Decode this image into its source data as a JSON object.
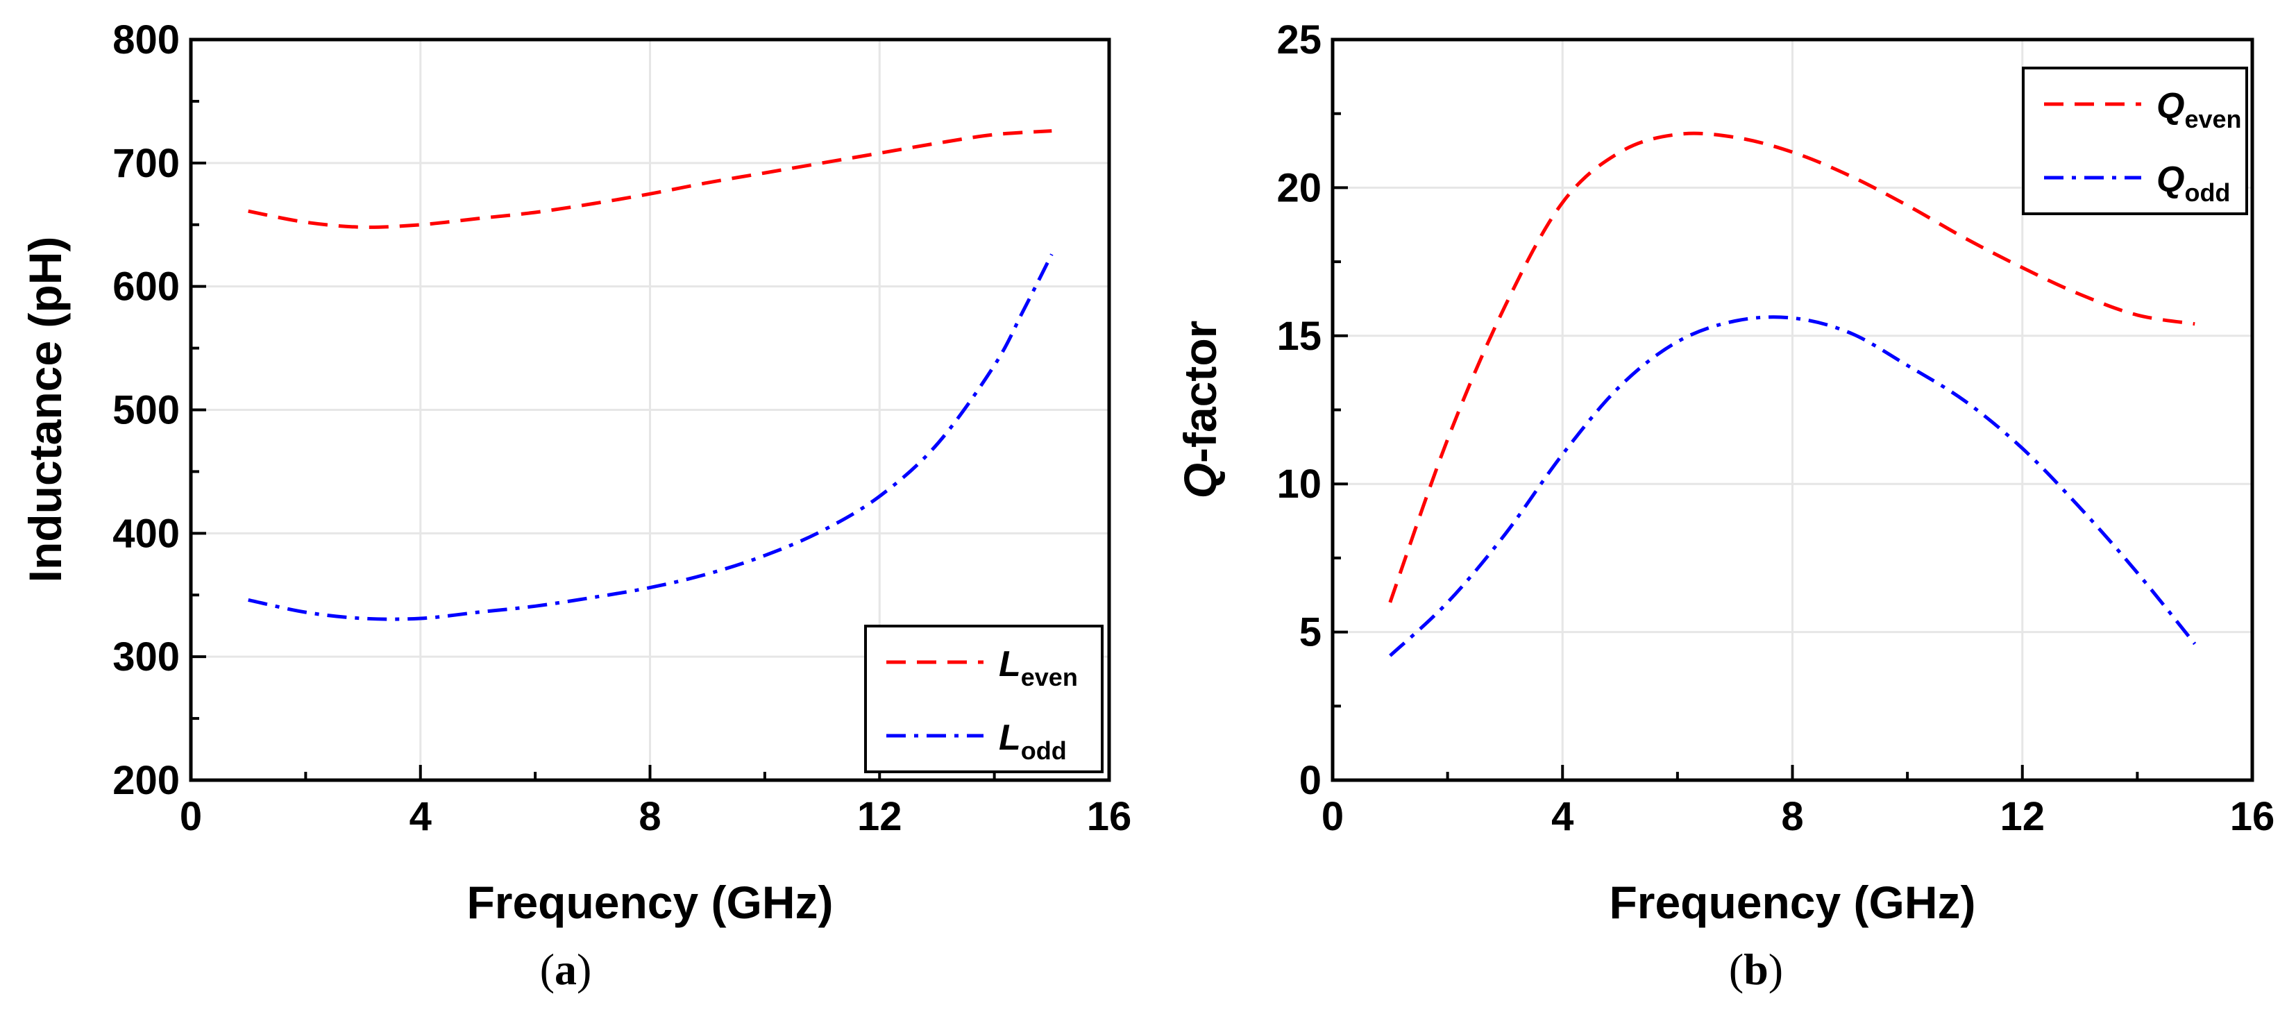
{
  "chart_data": [
    {
      "type": "line",
      "panel_label": {
        "open": "(",
        "letter": "a",
        "close": ")"
      },
      "xlabel": "Frequency (GHz)",
      "ylabel": "Inductance (pH)",
      "xlim": [
        0,
        16
      ],
      "ylim": [
        200,
        800
      ],
      "xticks": [
        0,
        4,
        8,
        12,
        16
      ],
      "xtick_labels": [
        "0",
        "4",
        "8",
        "12",
        "16"
      ],
      "yticks": [
        200,
        300,
        400,
        500,
        600,
        700,
        800
      ],
      "ytick_labels": [
        "200",
        "300",
        "400",
        "500",
        "600",
        "700",
        "800"
      ],
      "grid": true,
      "legend_position": "bottom-right",
      "series": [
        {
          "name": "L_even",
          "legend_main": "L",
          "legend_sub": "even",
          "color": "#ff0000",
          "style": "dash",
          "x": [
            1,
            2,
            3,
            4,
            5,
            6,
            7,
            8,
            9,
            10,
            11,
            12,
            13,
            14,
            15
          ],
          "y": [
            661,
            652,
            648,
            650,
            655,
            660,
            667,
            675,
            684,
            692,
            700,
            708,
            716,
            723,
            726
          ]
        },
        {
          "name": "L_odd",
          "legend_main": "L",
          "legend_sub": "odd",
          "color": "#0000ff",
          "style": "dashdot",
          "x": [
            1,
            2,
            3,
            4,
            5,
            6,
            7,
            8,
            9,
            10,
            11,
            12,
            13,
            14,
            14.5,
            15
          ],
          "y": [
            346,
            336,
            331,
            331,
            336,
            341,
            348,
            356,
            367,
            382,
            402,
            430,
            472,
            536,
            580,
            626
          ]
        }
      ]
    },
    {
      "type": "line",
      "panel_label": {
        "open": "(",
        "letter": "b",
        "close": ")"
      },
      "xlabel": "Frequency (GHz)",
      "ylabel_main": "Q",
      "ylabel_rest": "-factor",
      "xlim": [
        0,
        16
      ],
      "ylim": [
        0,
        25
      ],
      "xticks": [
        0,
        4,
        8,
        12,
        16
      ],
      "xtick_labels": [
        "0",
        "4",
        "8",
        "12",
        "16"
      ],
      "yticks": [
        0,
        5,
        10,
        15,
        20,
        25
      ],
      "ytick_labels": [
        "0",
        "5",
        "10",
        "15",
        "20",
        "25"
      ],
      "grid": true,
      "legend_position": "top-right",
      "series": [
        {
          "name": "Q_even",
          "legend_main": "Q",
          "legend_sub": "even",
          "color": "#ff0000",
          "style": "dash",
          "x": [
            1,
            2,
            3,
            4,
            5,
            6,
            7,
            8,
            9,
            10,
            11,
            12,
            13,
            14,
            15
          ],
          "y": [
            6.0,
            11.5,
            16.0,
            19.5,
            21.2,
            21.8,
            21.7,
            21.2,
            20.4,
            19.4,
            18.3,
            17.3,
            16.4,
            15.7,
            15.4
          ]
        },
        {
          "name": "Q_odd",
          "legend_main": "Q",
          "legend_sub": "odd",
          "color": "#0000ff",
          "style": "dashdot",
          "x": [
            1,
            2,
            3,
            4,
            5,
            6,
            7,
            8,
            9,
            10,
            11,
            12,
            13,
            14,
            15
          ],
          "y": [
            4.2,
            6.0,
            8.3,
            11.0,
            13.3,
            14.8,
            15.5,
            15.6,
            15.1,
            14.0,
            12.8,
            11.2,
            9.2,
            7.0,
            4.6
          ]
        }
      ]
    }
  ]
}
